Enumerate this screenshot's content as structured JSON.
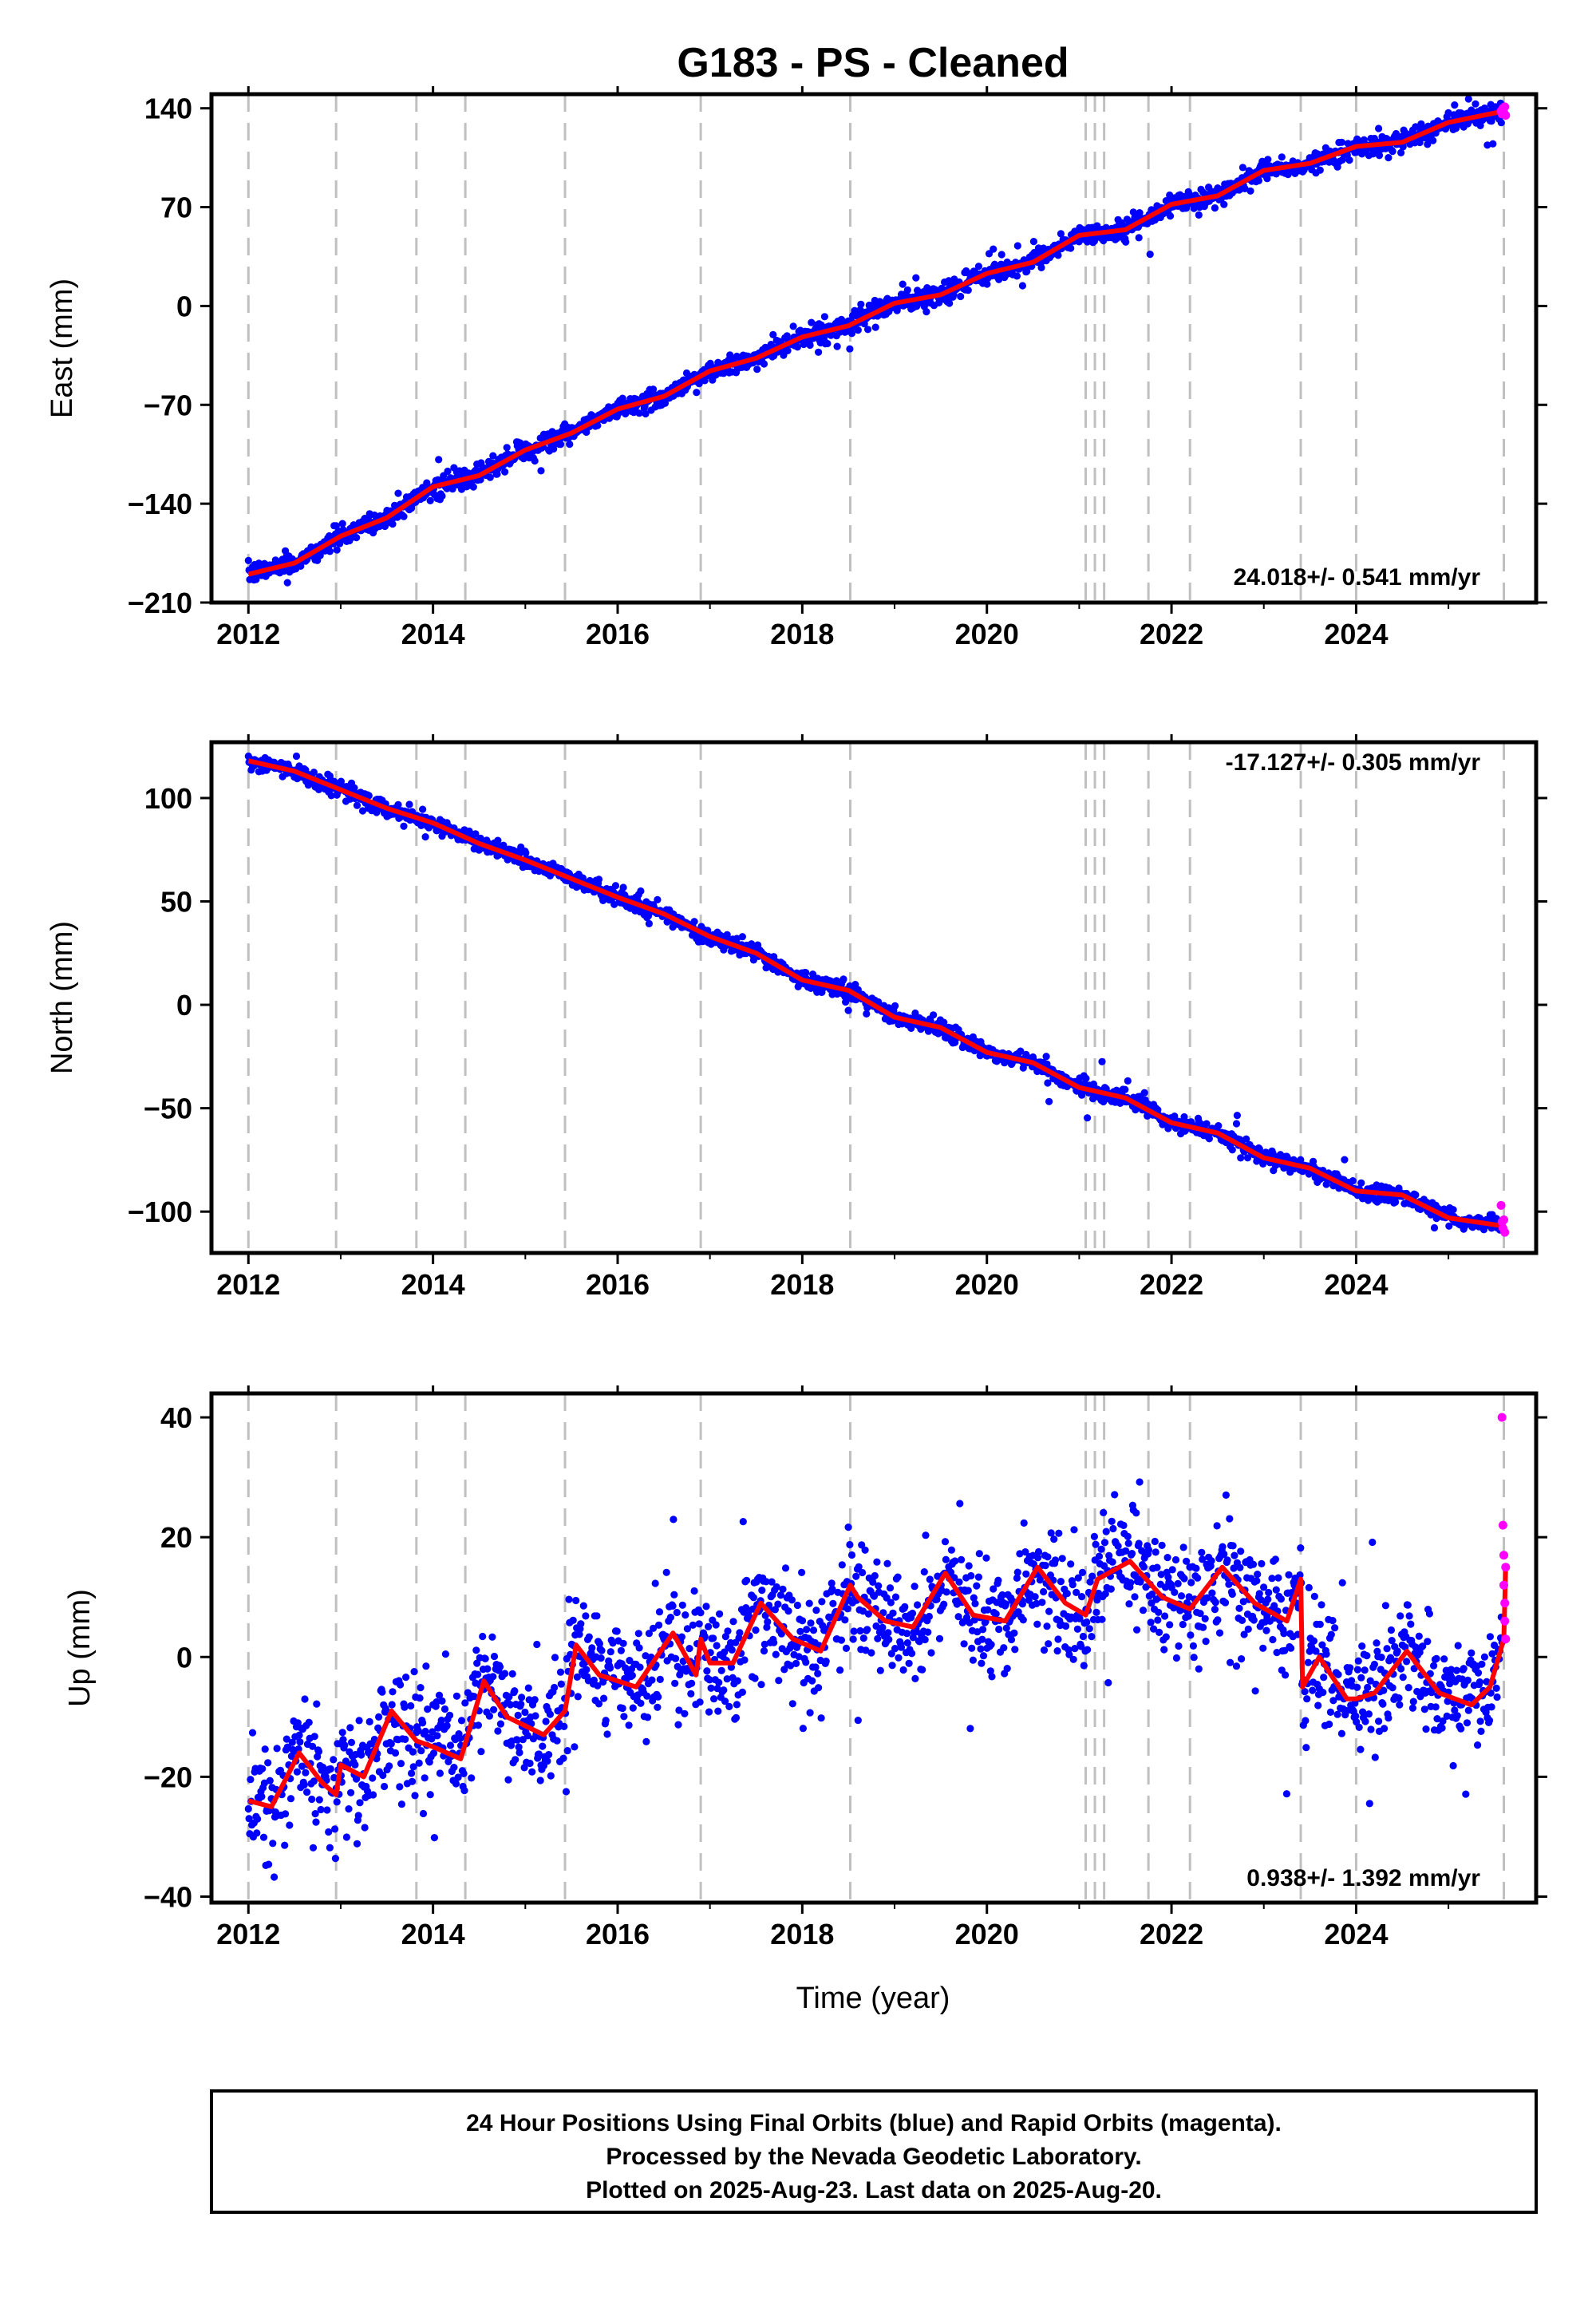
{
  "title": "G183  - PS - Cleaned",
  "xlabel": "Time (year)",
  "footer": {
    "line1": "24 Hour Positions Using Final Orbits (blue) and Rapid Orbits (magenta).",
    "line2": "Processed by the Nevada Geodetic Laboratory.",
    "line3": "Plotted on 2025-Aug-23. Last data on 2025-Aug-20."
  },
  "colors": {
    "final": "#0000ff",
    "rapid": "#ff00ff",
    "model": "#ff0000",
    "steps": "#c0c0c0"
  },
  "chart_data": [
    {
      "type": "scatter",
      "ylabel": "East (mm)",
      "rate_label": "24.018+/- 0.541 mm/yr",
      "xlim": [
        2011.6,
        2025.95
      ],
      "ylim": [
        -210,
        150
      ],
      "xticks": [
        2012,
        2014,
        2016,
        2018,
        2020,
        2022,
        2024
      ],
      "yticks": [
        -210,
        -140,
        -70,
        0,
        70,
        140
      ],
      "step_epochs": [
        2012.0,
        2012.95,
        2013.82,
        2014.35,
        2015.43,
        2016.9,
        2018.52,
        2021.07,
        2021.17,
        2021.27,
        2021.75,
        2022.2,
        2023.4,
        2024.0,
        2025.6
      ],
      "rate": 24.018,
      "scatter_mm": 3.5,
      "model": {
        "x": [
          2012.0,
          2012.5,
          2013.0,
          2013.5,
          2014.0,
          2014.5,
          2015.0,
          2015.5,
          2016.0,
          2016.5,
          2017.0,
          2017.5,
          2018.0,
          2018.5,
          2019.0,
          2019.5,
          2020.0,
          2020.5,
          2021.0,
          2021.5,
          2022.0,
          2022.5,
          2023.0,
          2023.5,
          2024.0,
          2024.5,
          2025.0,
          2025.6
        ],
        "y": [
          -190,
          -182,
          -163,
          -150,
          -128,
          -120,
          -102,
          -90,
          -73,
          -64,
          -46,
          -37,
          -22,
          -14,
          2,
          8,
          23,
          31,
          50,
          54,
          72,
          78,
          96,
          101,
          113,
          116,
          130,
          138
        ]
      },
      "rapid": {
        "x": [
          2025.57,
          2025.58,
          2025.59,
          2025.6,
          2025.61,
          2025.62
        ],
        "y": [
          138,
          136,
          140,
          137,
          141,
          135
        ]
      }
    },
    {
      "type": "scatter",
      "ylabel": "North (mm)",
      "rate_label": "-17.127+/- 0.305 mm/yr",
      "xlim": [
        2011.6,
        2025.95
      ],
      "ylim": [
        -120,
        127
      ],
      "xticks": [
        2012,
        2014,
        2016,
        2018,
        2020,
        2022,
        2024
      ],
      "yticks": [
        -100,
        -50,
        0,
        50,
        100
      ],
      "step_epochs": [
        2012.0,
        2012.95,
        2013.82,
        2014.35,
        2015.43,
        2016.9,
        2018.52,
        2021.07,
        2021.17,
        2021.27,
        2021.75,
        2022.2,
        2023.4,
        2024.0,
        2025.6
      ],
      "rate": -17.127,
      "scatter_mm": 2.0,
      "model": {
        "x": [
          2012.0,
          2012.5,
          2013.0,
          2013.5,
          2014.0,
          2014.5,
          2015.0,
          2015.5,
          2016.0,
          2016.5,
          2017.0,
          2017.5,
          2018.0,
          2018.5,
          2019.0,
          2019.5,
          2020.0,
          2020.5,
          2021.0,
          2021.5,
          2022.0,
          2022.5,
          2023.0,
          2023.5,
          2024.0,
          2024.5,
          2025.0,
          2025.6
        ],
        "y": [
          118,
          113,
          104,
          95,
          88,
          78,
          70,
          61,
          52,
          44,
          33,
          25,
          12,
          7,
          -6,
          -11,
          -23,
          -28,
          -40,
          -45,
          -57,
          -62,
          -74,
          -79,
          -90,
          -92,
          -103,
          -107
        ]
      },
      "rapid": {
        "x": [
          2025.57,
          2025.58,
          2025.59,
          2025.6,
          2025.61
        ],
        "y": [
          -97,
          -105,
          -108,
          -104,
          -110
        ]
      }
    },
    {
      "type": "scatter",
      "ylabel": "Up (mm)",
      "rate_label": "0.938+/- 1.392 mm/yr",
      "xlim": [
        2011.6,
        2025.95
      ],
      "ylim": [
        -41,
        44
      ],
      "xticks": [
        2012,
        2014,
        2016,
        2018,
        2020,
        2022,
        2024
      ],
      "yticks": [
        -40,
        -20,
        0,
        20,
        40
      ],
      "step_epochs": [
        2012.0,
        2012.95,
        2013.82,
        2014.35,
        2015.43,
        2016.9,
        2018.52,
        2021.07,
        2021.17,
        2021.27,
        2021.75,
        2022.2,
        2023.4,
        2024.0,
        2025.6
      ],
      "rate": 0.938,
      "scatter_mm": 4.5,
      "model": {
        "x": [
          2012.0,
          2012.25,
          2012.55,
          2012.8,
          2012.95,
          2013.0,
          2013.25,
          2013.55,
          2013.82,
          2014.0,
          2014.3,
          2014.55,
          2014.8,
          2015.2,
          2015.43,
          2015.55,
          2015.8,
          2016.2,
          2016.6,
          2016.85,
          2016.9,
          2017.0,
          2017.25,
          2017.55,
          2017.9,
          2018.2,
          2018.52,
          2018.6,
          2018.9,
          2019.2,
          2019.55,
          2019.85,
          2020.2,
          2020.55,
          2020.85,
          2021.07,
          2021.2,
          2021.55,
          2021.9,
          2022.2,
          2022.55,
          2022.9,
          2023.25,
          2023.4,
          2023.42,
          2023.6,
          2023.9,
          2024.0,
          2024.2,
          2024.55,
          2024.9,
          2025.25,
          2025.45,
          2025.6,
          2025.62
        ],
        "y": [
          -24,
          -25,
          -16,
          -21,
          -23,
          -18,
          -20,
          -9,
          -14,
          -15,
          -17,
          -4,
          -10,
          -13,
          -9,
          2,
          -3,
          -5,
          4,
          -3,
          3,
          -1,
          -1,
          9,
          3,
          1,
          12,
          10,
          6,
          5,
          14,
          7,
          6,
          15,
          9,
          7,
          13,
          16,
          10,
          8,
          15,
          9,
          6,
          13,
          -5,
          0,
          -7,
          -7,
          -6,
          1,
          -6,
          -8,
          -5,
          3,
          15
        ]
      },
      "rapid": {
        "x": [
          2025.58,
          2025.59,
          2025.6,
          2025.6,
          2025.61,
          2025.61,
          2025.62,
          2025.62
        ],
        "y": [
          40,
          22,
          17,
          12,
          9,
          6,
          3,
          15
        ]
      }
    }
  ]
}
